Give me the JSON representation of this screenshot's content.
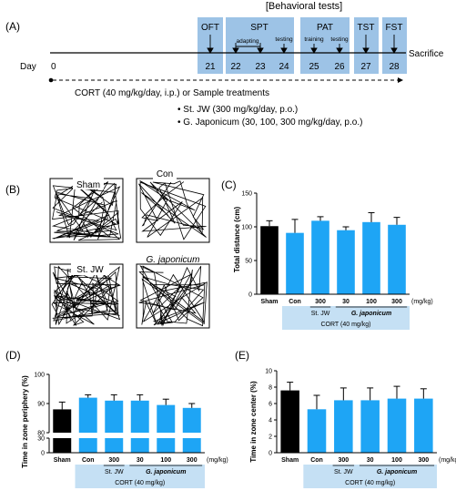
{
  "timeline": {
    "panel_label": "(A)",
    "header": "[Behavioral tests]",
    "day_label": "Day",
    "day_start": "0",
    "sacrifice": "Sacrifice",
    "tests": [
      {
        "name": "OFT",
        "days": [
          "21"
        ]
      },
      {
        "name": "SPT",
        "days": [
          "22",
          "23",
          "24"
        ],
        "sub": [
          "adapting",
          "testing"
        ]
      },
      {
        "name": "PAT",
        "days": [
          "25",
          "26"
        ],
        "sub": [
          "training",
          "testing"
        ]
      },
      {
        "name": "TST",
        "days": [
          "27"
        ]
      },
      {
        "name": "FST",
        "days": [
          "28"
        ]
      }
    ],
    "treatment_line": "CORT (40 mg/kg/day, i.p.) or Sample treatments",
    "bullets": [
      "St. JW (300 mg/kg/day, p.o.)",
      "G. Japonicum (30, 100, 300 mg/kg/day, p.o.)"
    ]
  },
  "tracks": {
    "panel_label": "(B)",
    "labels": [
      "Sham",
      "Con",
      "St. JW",
      "G. japonicum"
    ]
  },
  "colors": {
    "box": "#9dc3e6",
    "bar_control": "#000000",
    "bar_treated": "#1ea5f5",
    "band": "#c5e0f4",
    "grid": "#000000"
  },
  "x_axis": {
    "groups": [
      "Sham",
      "Con",
      "300",
      "30",
      "100",
      "300"
    ],
    "unit": "(mg/kg)",
    "stjw": "St. JW",
    "gjap": "G. japonicum",
    "cort": "CORT (40 mg/kg)"
  },
  "chart_data": [
    {
      "panel_label": "(C)",
      "type": "bar",
      "ylabel": "Total distance (cm)",
      "ylim": [
        0,
        150
      ],
      "ticks": [
        0,
        50,
        100,
        150
      ],
      "values": [
        101,
        91,
        109,
        95,
        107,
        103
      ],
      "errors": [
        8,
        20,
        6,
        5,
        14,
        11
      ]
    },
    {
      "panel_label": "(D)",
      "type": "bar",
      "ylabel": "Time in zone periphery (%)",
      "broken_axis": true,
      "ticks_lower": [
        0,
        30
      ],
      "ticks_upper": [
        80,
        90,
        100
      ],
      "upper_range": [
        80,
        100
      ],
      "values": [
        88,
        92,
        91,
        91,
        89.5,
        88.5
      ],
      "errors": [
        2.5,
        1,
        2,
        2,
        2,
        1.5
      ]
    },
    {
      "panel_label": "(E)",
      "type": "bar",
      "ylabel": "Time in zone center (%)",
      "ylim": [
        0,
        10
      ],
      "ticks": [
        0,
        2,
        4,
        6,
        8,
        10
      ],
      "values": [
        7.6,
        5.3,
        6.4,
        6.4,
        6.6,
        6.6
      ],
      "errors": [
        1.0,
        1.7,
        1.5,
        1.5,
        1.5,
        1.2
      ]
    }
  ]
}
